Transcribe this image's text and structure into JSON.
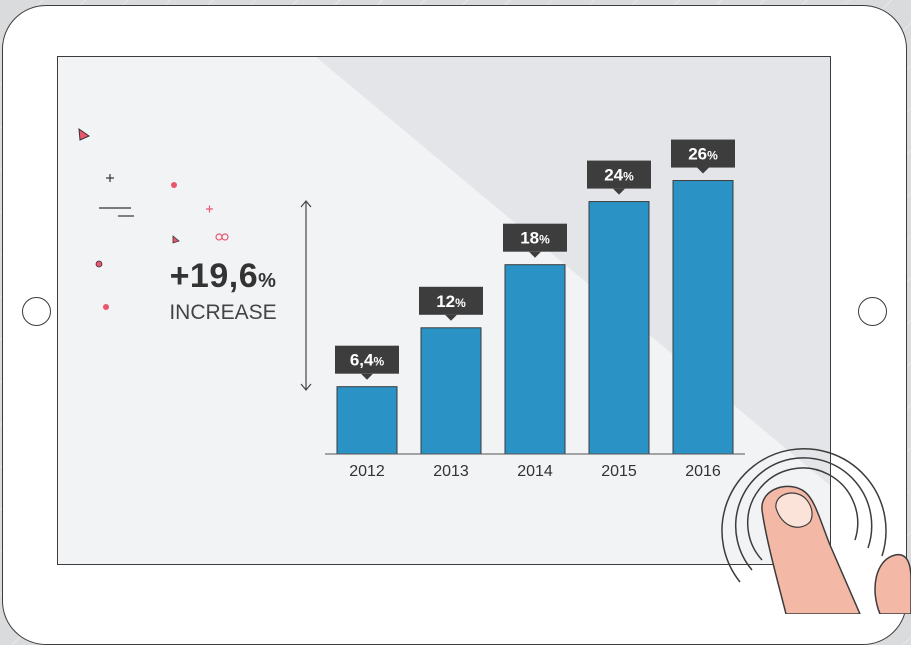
{
  "highlight": {
    "value": "+19,6",
    "unit": "%",
    "label": "INCREASE"
  },
  "colors": {
    "bar": "#2a92c4",
    "bar_stroke": "#3a3a3a",
    "label_box": "#3d3d3d",
    "accent": "#e9566d"
  },
  "chart_data": {
    "type": "bar",
    "categories": [
      "2012",
      "2013",
      "2014",
      "2015",
      "2016"
    ],
    "values": [
      6.4,
      12,
      18,
      24,
      26
    ],
    "value_labels": [
      "6,4",
      "12",
      "18",
      "24",
      "26"
    ],
    "value_suffix": "%",
    "title": "",
    "xlabel": "",
    "ylabel": "",
    "ylim": [
      0,
      29
    ],
    "grid": false,
    "legend": "none"
  }
}
